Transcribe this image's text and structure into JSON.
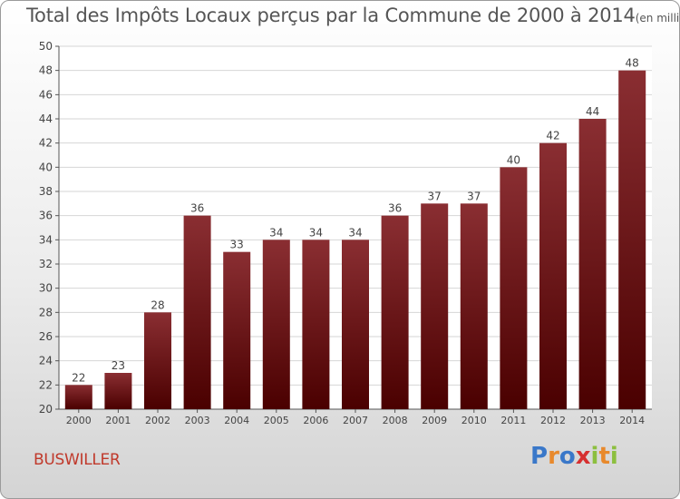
{
  "header": {
    "title": "Total des Impôts Locaux perçus par la Commune de 2000 à 2014",
    "subtitle": "(en milliers d'€)"
  },
  "footer": {
    "commune": "BUSWILLER",
    "logo": {
      "text": "Proxiti",
      "letters": [
        {
          "ch": "P",
          "color": "#3a78c9"
        },
        {
          "ch": "r",
          "color": "#e8892c"
        },
        {
          "ch": "o",
          "color": "#3a78c9"
        },
        {
          "ch": "x",
          "color": "#d63030"
        },
        {
          "ch": "i",
          "color": "#8cbf3f"
        },
        {
          "ch": "t",
          "color": "#e8892c"
        },
        {
          "ch": "i",
          "color": "#8cbf3f"
        }
      ]
    }
  },
  "chart_data": {
    "type": "bar",
    "categories": [
      "2000",
      "2001",
      "2002",
      "2003",
      "2004",
      "2005",
      "2006",
      "2007",
      "2008",
      "2009",
      "2010",
      "2011",
      "2012",
      "2013",
      "2014"
    ],
    "values": [
      22,
      23,
      28,
      36,
      33,
      34,
      34,
      34,
      36,
      37,
      37,
      40,
      42,
      44,
      48
    ],
    "ylim": [
      20,
      50
    ],
    "yticks": [
      20,
      22,
      24,
      26,
      28,
      30,
      32,
      34,
      36,
      38,
      40,
      42,
      44,
      46,
      48,
      50
    ],
    "grid": true,
    "bar_color_top": "#8a2e32",
    "bar_color_bottom": "#4a0000",
    "xlabel": "",
    "ylabel": ""
  }
}
